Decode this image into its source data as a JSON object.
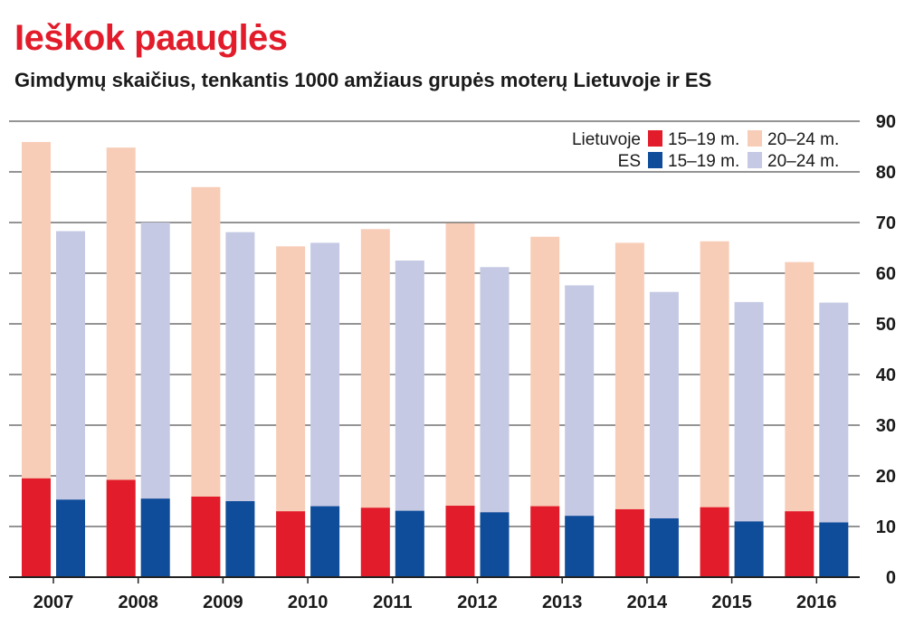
{
  "header": {
    "title": "Ieškok paauglės",
    "subtitle": "Gimdymų skaičius, tenkantis 1000 amžiaus grupės moterų Lietuvoje ir ES"
  },
  "legend": {
    "row1_label": "Lietuvoje",
    "row2_label": "ES",
    "age_15_19": "15–19 m.",
    "age_20_24": "20–24 m.",
    "position": "top-right"
  },
  "colors": {
    "lt_15_19": "#e21c2a",
    "lt_20_24": "#f8cdb8",
    "es_15_19": "#0f4c9a",
    "es_20_24": "#c5c9e3",
    "grid": "#555555",
    "title": "#e21c2a"
  },
  "chart_data": {
    "type": "bar",
    "stacking": "overlapping",
    "categories": [
      "2007",
      "2008",
      "2009",
      "2010",
      "2011",
      "2012",
      "2013",
      "2014",
      "2015",
      "2016"
    ],
    "series": [
      {
        "group": "Lietuvoje",
        "age": "15–19 m.",
        "values": [
          19.5,
          19.2,
          15.9,
          13.0,
          13.7,
          14.1,
          14.0,
          13.4,
          13.8,
          13.0
        ]
      },
      {
        "group": "Lietuvoje",
        "age": "20–24 m.",
        "values": [
          85.9,
          84.8,
          77.0,
          65.3,
          68.7,
          69.9,
          67.2,
          66.0,
          66.3,
          62.2
        ]
      },
      {
        "group": "ES",
        "age": "15–19 m.",
        "values": [
          15.3,
          15.5,
          15.0,
          14.0,
          13.1,
          12.8,
          12.1,
          11.6,
          11.0,
          10.8
        ]
      },
      {
        "group": "ES",
        "age": "20–24 m.",
        "values": [
          68.3,
          70.0,
          68.1,
          66.0,
          62.5,
          61.2,
          57.6,
          56.3,
          54.3,
          54.2
        ]
      }
    ],
    "ylim": [
      0,
      90
    ],
    "yticks": [
      0,
      10,
      20,
      30,
      40,
      50,
      60,
      70,
      80,
      90
    ],
    "y_axis_side": "right",
    "grid": true
  }
}
